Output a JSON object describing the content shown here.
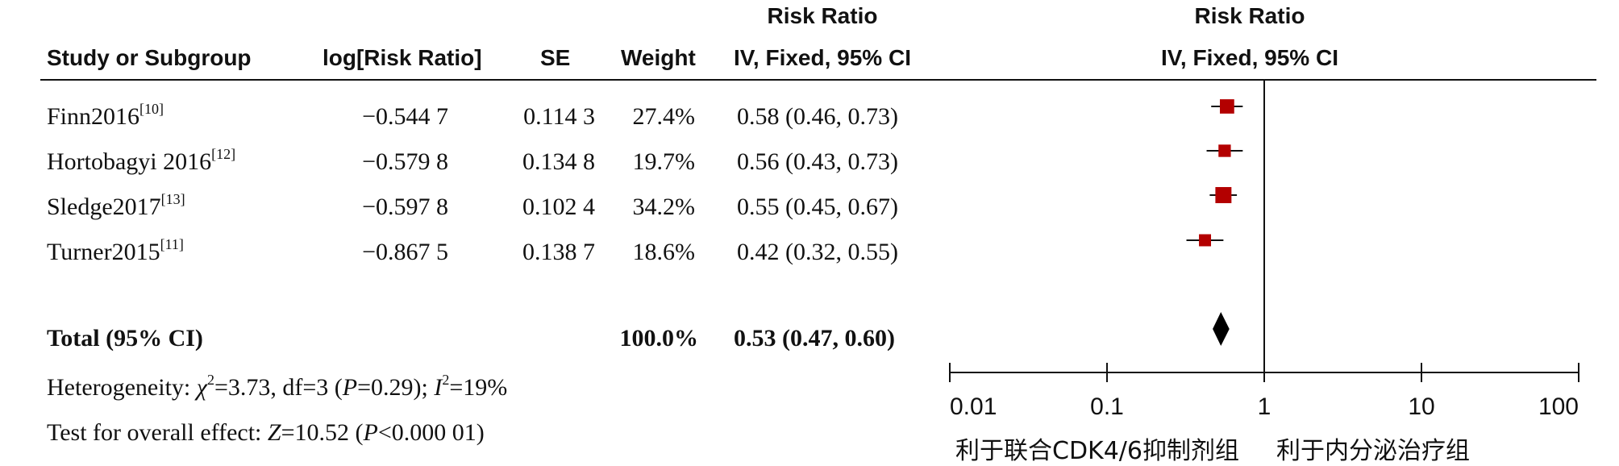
{
  "headers": {
    "study": "Study or Subgroup",
    "log_rr": "log[Risk Ratio]",
    "se": "SE",
    "weight": "Weight",
    "rr_title": "Risk Ratio",
    "rr_method": "IV, Fixed, 95% CI",
    "plot_title": "Risk Ratio",
    "plot_method": "IV, Fixed, 95% CI"
  },
  "studies": [
    {
      "name": "Finn2016",
      "ref": "[10]",
      "log_rr": "−0.544 7",
      "se": "0.114 3",
      "weight": "27.4%",
      "ci_text": "0.58 (0.46, 0.73)"
    },
    {
      "name": "Hortobagyi 2016",
      "ref": "[12]",
      "log_rr": "−0.579 8",
      "se": "0.134 8",
      "weight": "19.7%",
      "ci_text": "0.56 (0.43, 0.73)"
    },
    {
      "name": "Sledge2017",
      "ref": "[13]",
      "log_rr": "−0.597 8",
      "se": "0.102 4",
      "weight": "34.2%",
      "ci_text": "0.55 (0.45, 0.67)"
    },
    {
      "name": "Turner2015",
      "ref": "[11]",
      "log_rr": "−0.867 5",
      "se": "0.138 7",
      "weight": "18.6%",
      "ci_text": "0.42 (0.32, 0.55)"
    }
  ],
  "total": {
    "label": "Total (95% CI)",
    "weight": "100.0%",
    "ci_text": "0.53 (0.47, 0.60)"
  },
  "heterogeneity": {
    "prefix": "Heterogeneity: ",
    "chi_symbol": "χ",
    "chi_sup": "2",
    "chi_value": "=3.73, df=3 (",
    "p_symbol": "P",
    "p_value": "=0.29); ",
    "i_symbol": "I",
    "i_sup": "2",
    "i_value": "=19%"
  },
  "overall_effect": {
    "prefix": "Test for overall effect: ",
    "z_symbol": "Z",
    "z_value": "=10.52 (",
    "p_symbol": "P",
    "p_value": "<0.000 01)"
  },
  "favours": {
    "left": "利于联合CDK4/6抑制剂组",
    "right": "利于内分泌治疗组"
  },
  "colors": {
    "study_marker": "#b30000",
    "diamond": "#000000",
    "line": "#111111"
  },
  "chart_data": {
    "type": "forest",
    "scale": "log",
    "xlim": [
      0.01,
      100
    ],
    "ticks": [
      0.01,
      0.1,
      1,
      10,
      100
    ],
    "tick_labels": [
      "0.01",
      "0.1",
      "1",
      "10",
      "100"
    ],
    "reference_line": 1,
    "points": [
      {
        "name": "Finn2016",
        "rr": 0.58,
        "lo": 0.46,
        "hi": 0.73,
        "weight": 27.4
      },
      {
        "name": "Hortobagyi 2016",
        "rr": 0.56,
        "lo": 0.43,
        "hi": 0.73,
        "weight": 19.7
      },
      {
        "name": "Sledge2017",
        "rr": 0.55,
        "lo": 0.45,
        "hi": 0.67,
        "weight": 34.2
      },
      {
        "name": "Turner2015",
        "rr": 0.42,
        "lo": 0.32,
        "hi": 0.55,
        "weight": 18.6
      }
    ],
    "pooled": {
      "name": "Total (95% CI)",
      "rr": 0.53,
      "lo": 0.47,
      "hi": 0.6
    }
  }
}
